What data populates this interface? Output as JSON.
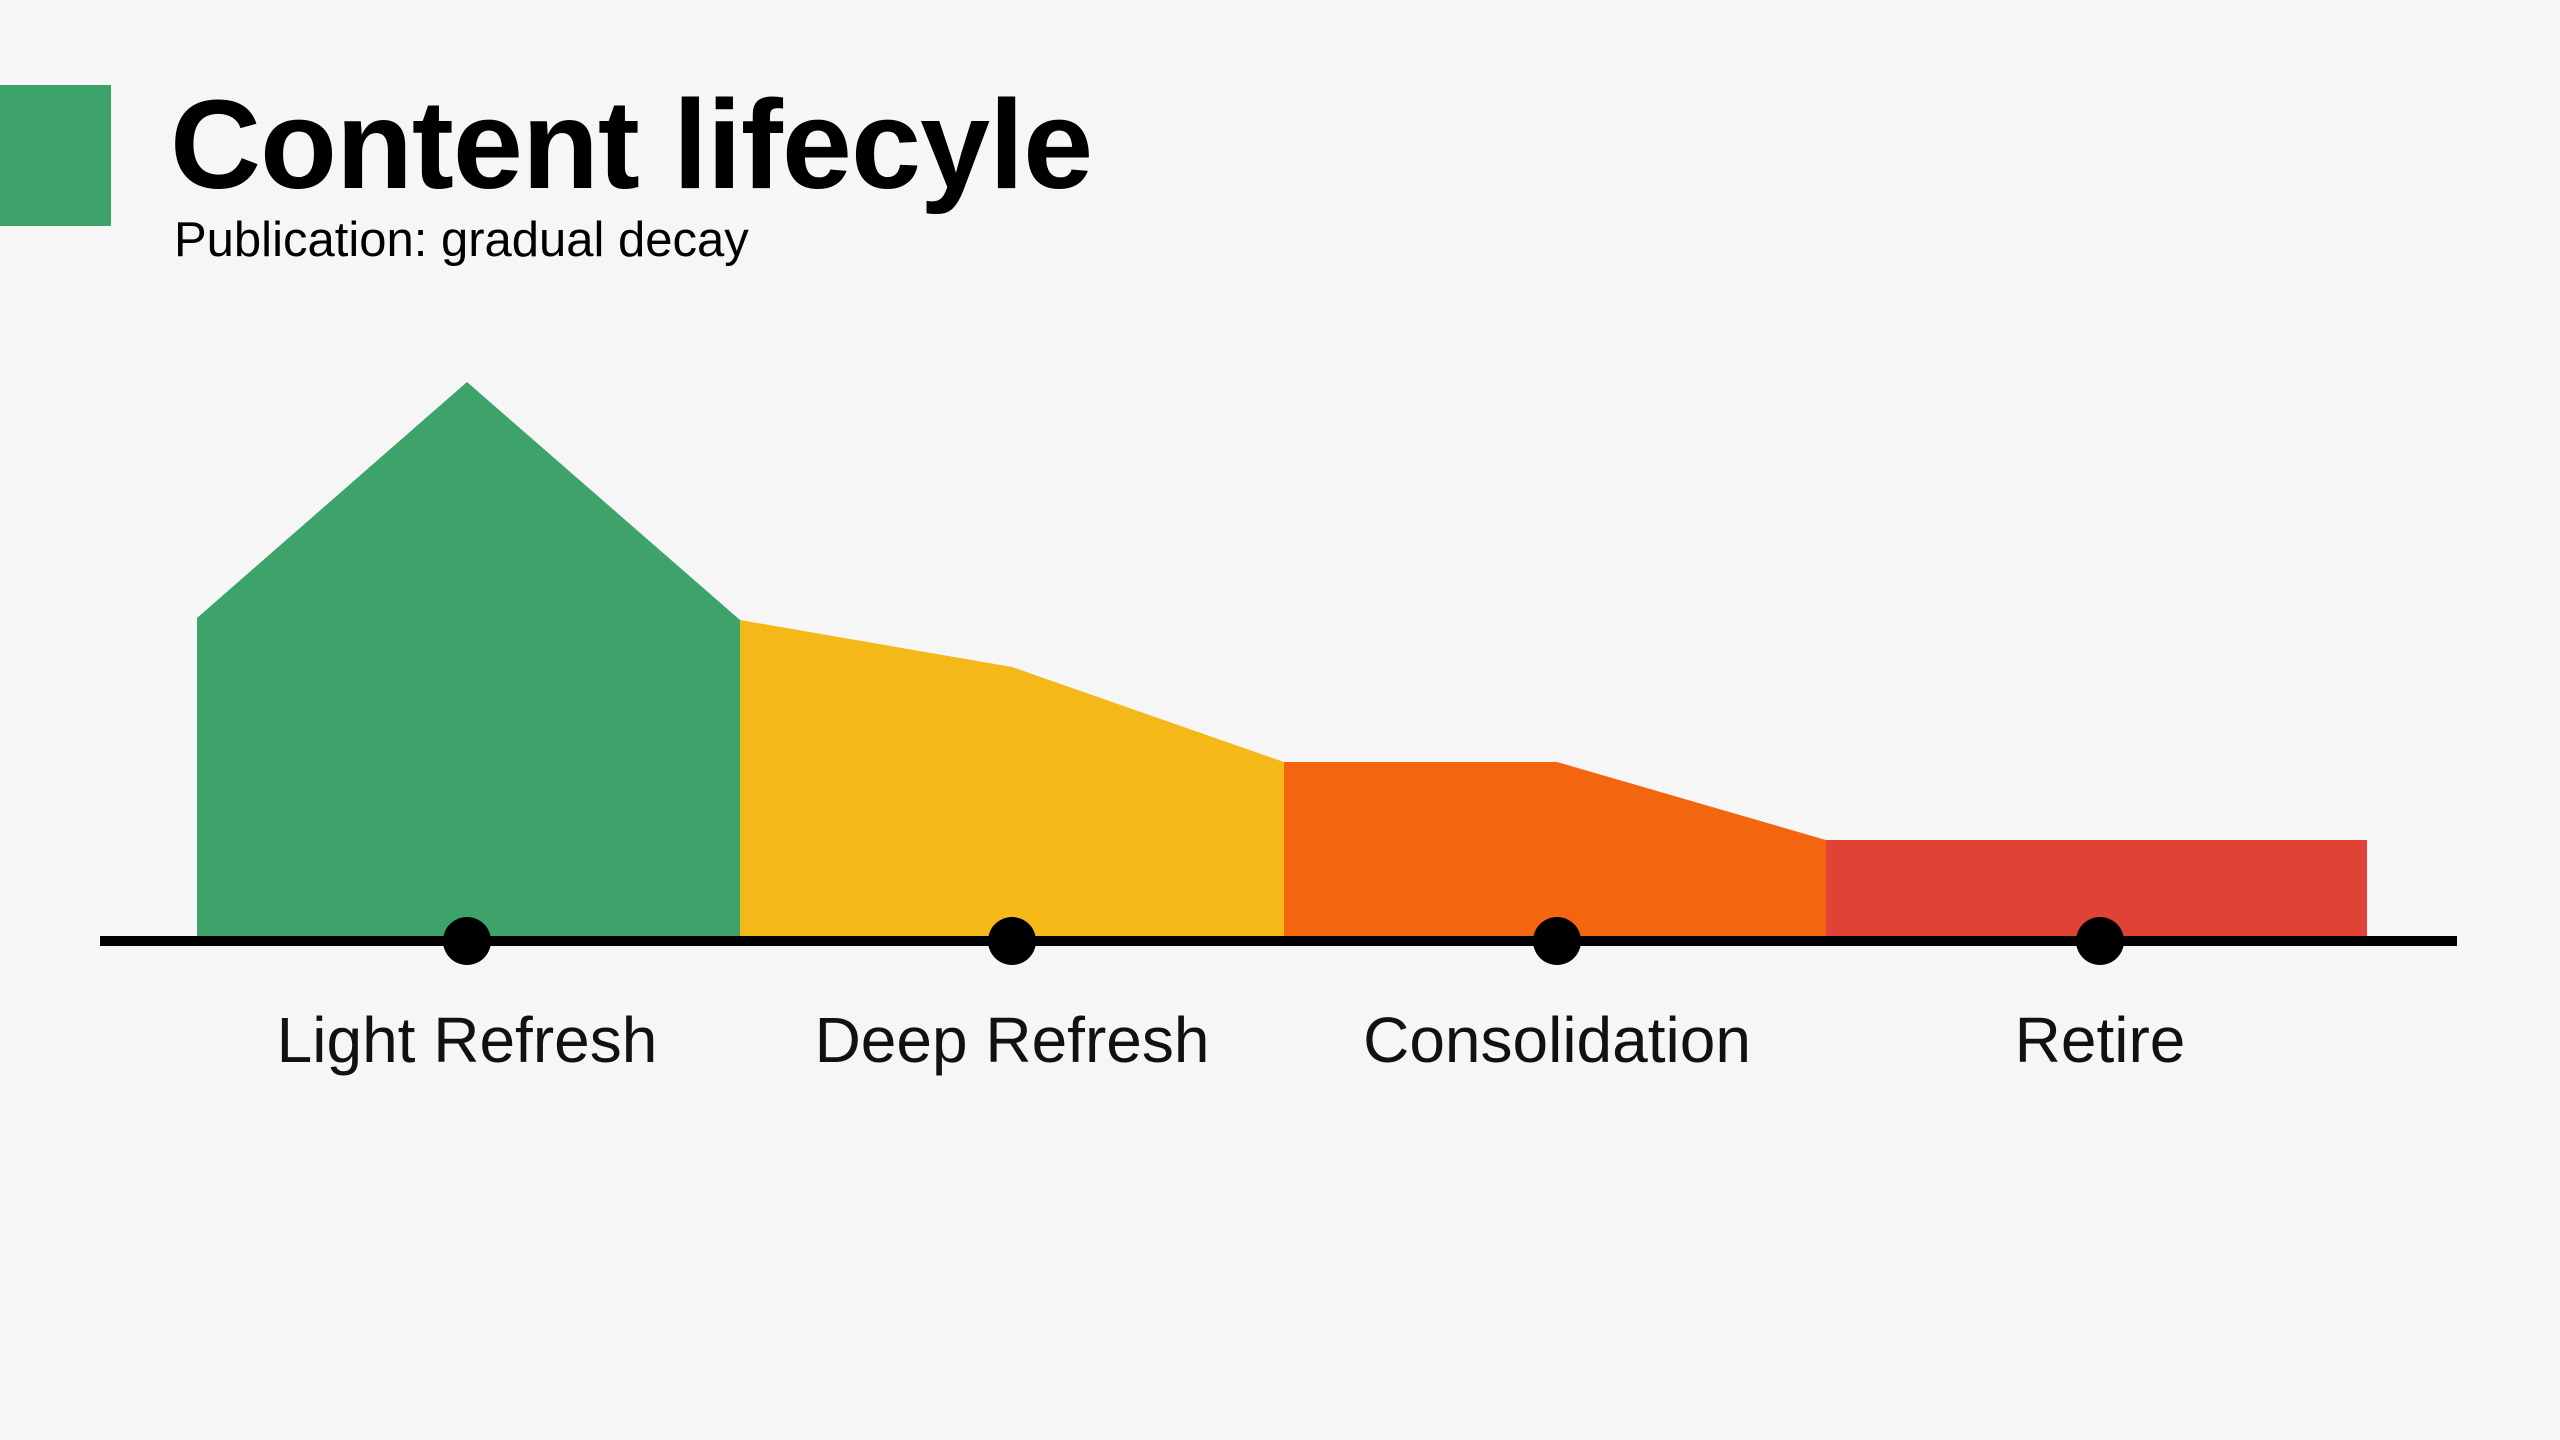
{
  "header": {
    "title": "Content lifecyle",
    "subtitle": "Publication: gradual decay"
  },
  "colors": {
    "background": "#f6f6f6",
    "accent": "#3ea36b",
    "stage_green": "#3ea36b",
    "stage_yellow": "#f4b819",
    "stage_orange": "#f4650f",
    "stage_red": "#df4336",
    "axis": "#000000"
  },
  "stages": [
    {
      "label": "Light Refresh",
      "color": "#3ea36b"
    },
    {
      "label": "Deep Refresh",
      "color": "#f4b819"
    },
    {
      "label": "Consolidation",
      "color": "#f4650f"
    },
    {
      "label": "Retire",
      "color": "#df4336"
    }
  ]
}
